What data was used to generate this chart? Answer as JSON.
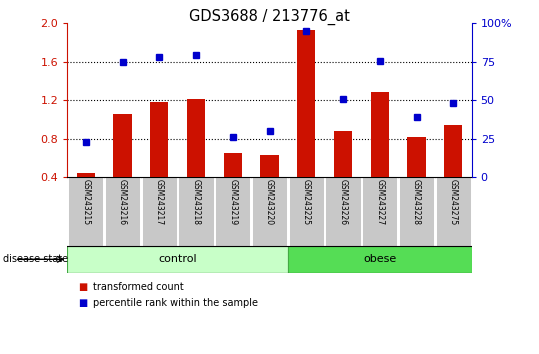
{
  "title": "GDS3688 / 213776_at",
  "samples": [
    "GSM243215",
    "GSM243216",
    "GSM243217",
    "GSM243218",
    "GSM243219",
    "GSM243220",
    "GSM243225",
    "GSM243226",
    "GSM243227",
    "GSM243228",
    "GSM243275"
  ],
  "bar_values": [
    0.44,
    1.05,
    1.18,
    1.21,
    0.65,
    0.63,
    1.93,
    0.88,
    1.28,
    0.82,
    0.94
  ],
  "dot_values": [
    0.76,
    1.59,
    1.65,
    1.67,
    0.82,
    0.88,
    1.92,
    1.21,
    1.61,
    1.02,
    1.17
  ],
  "groups": [
    {
      "label": "control",
      "count": 6,
      "color": "#c8ffc8"
    },
    {
      "label": "obese",
      "count": 5,
      "color": "#55dd55"
    }
  ],
  "ylim": [
    0.4,
    2.0
  ],
  "yticks_left": [
    0.4,
    0.8,
    1.2,
    1.6,
    2.0
  ],
  "yticks_right": [
    0,
    25,
    50,
    75,
    100
  ],
  "bar_color": "#cc1100",
  "dot_color": "#0000cc",
  "legend_bar_label": "transformed count",
  "legend_dot_label": "percentile rank within the sample",
  "disease_state_label": "disease state",
  "xticklabel_bg": "#c8c8c8",
  "xticklabel_divider": "#888888"
}
